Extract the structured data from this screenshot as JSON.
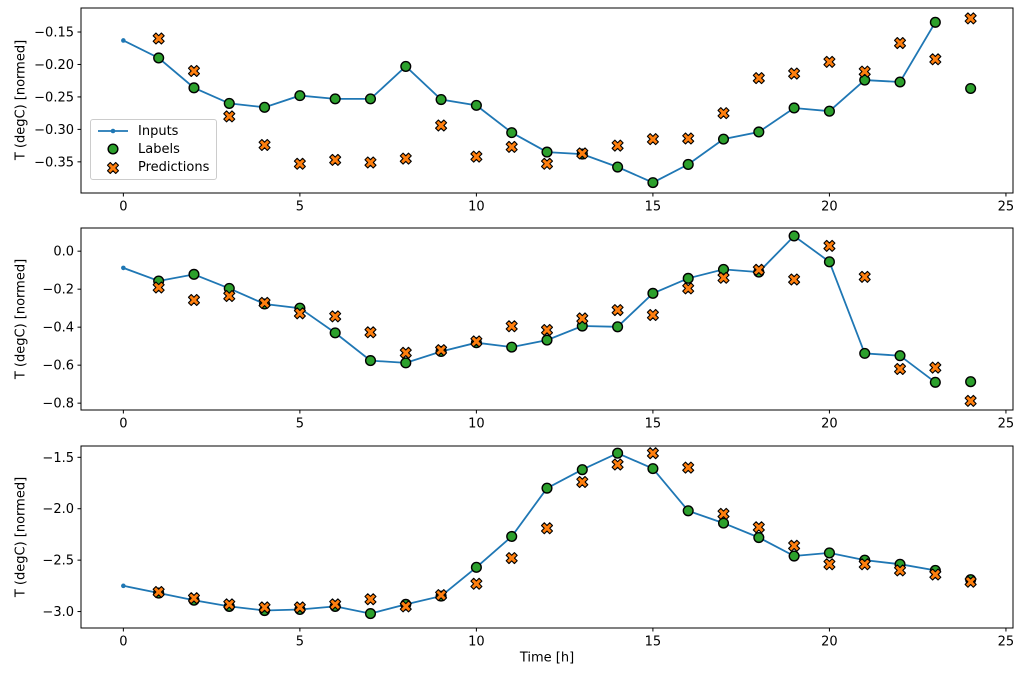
{
  "figure": {
    "background": "#ffffff",
    "n_subplots": 3,
    "shared_xlabel": "Time [h]"
  },
  "legend": {
    "visible": true,
    "position": "center-left-of-first-subplot",
    "border_color": "#cccccc"
  },
  "chart_data": [
    {
      "type": "line",
      "title": "",
      "xlabel": "",
      "ylabel": "T (degC) [normed]",
      "grid": false,
      "xlim": [
        -1.2,
        25.2
      ],
      "ylim": [
        -0.398,
        -0.113
      ],
      "xticks": {
        "values": [
          0,
          5,
          10,
          15,
          20,
          25
        ],
        "labels": [
          "0",
          "5",
          "10",
          "15",
          "20",
          "25"
        ]
      },
      "yticks": {
        "values": [
          -0.15,
          -0.2,
          -0.25,
          -0.3,
          -0.35
        ],
        "labels": [
          "−0.15",
          "−0.20",
          "−0.25",
          "−0.30",
          "−0.35"
        ]
      },
      "series": [
        {
          "name": "Inputs",
          "style": "line-dot",
          "color": "#1f77b4",
          "x": [
            0,
            1,
            2,
            3,
            4,
            5,
            6,
            7,
            8,
            9,
            10,
            11,
            12,
            13,
            14,
            15,
            16,
            17,
            18,
            19,
            20,
            21,
            22,
            23
          ],
          "y": [
            -0.163,
            -0.19,
            -0.236,
            -0.26,
            -0.266,
            -0.248,
            -0.253,
            -0.253,
            -0.203,
            -0.254,
            -0.263,
            -0.305,
            -0.335,
            -0.338,
            -0.358,
            -0.382,
            -0.354,
            -0.315,
            -0.304,
            -0.267,
            -0.272,
            -0.224,
            -0.227,
            -0.135
          ]
        },
        {
          "name": "Labels",
          "style": "scatter-circle",
          "color": "#2ca02c",
          "edge_color": "#000000",
          "x": [
            1,
            2,
            3,
            4,
            5,
            6,
            7,
            8,
            9,
            10,
            11,
            12,
            13,
            14,
            15,
            16,
            17,
            18,
            19,
            20,
            21,
            22,
            23,
            24
          ],
          "y": [
            -0.19,
            -0.236,
            -0.26,
            -0.266,
            -0.248,
            -0.253,
            -0.253,
            -0.203,
            -0.254,
            -0.263,
            -0.305,
            -0.335,
            -0.338,
            -0.358,
            -0.382,
            -0.354,
            -0.315,
            -0.304,
            -0.267,
            -0.272,
            -0.224,
            -0.227,
            -0.135,
            -0.237
          ]
        },
        {
          "name": "Predictions",
          "style": "scatter-x",
          "color": "#ff7f0e",
          "edge_color": "#000000",
          "x": [
            1,
            2,
            3,
            4,
            5,
            6,
            7,
            8,
            9,
            10,
            11,
            12,
            13,
            14,
            15,
            16,
            17,
            18,
            19,
            20,
            21,
            22,
            23,
            24
          ],
          "y": [
            -0.16,
            -0.21,
            -0.28,
            -0.324,
            -0.353,
            -0.347,
            -0.351,
            -0.345,
            -0.294,
            -0.342,
            -0.327,
            -0.353,
            -0.337,
            -0.325,
            -0.315,
            -0.314,
            -0.275,
            -0.221,
            -0.214,
            -0.196,
            -0.211,
            -0.167,
            -0.192,
            -0.129
          ]
        }
      ]
    },
    {
      "type": "line",
      "title": "",
      "xlabel": "",
      "ylabel": "T (degC) [normed]",
      "grid": false,
      "xlim": [
        -1.2,
        25.2
      ],
      "ylim": [
        -0.836,
        0.122
      ],
      "xticks": {
        "values": [
          0,
          5,
          10,
          15,
          20,
          25
        ],
        "labels": [
          "0",
          "5",
          "10",
          "15",
          "20",
          "25"
        ]
      },
      "yticks": {
        "values": [
          0.0,
          -0.2,
          -0.4,
          -0.6,
          -0.8
        ],
        "labels": [
          "0.0",
          "−0.2",
          "−0.4",
          "−0.6",
          "−0.8"
        ]
      },
      "series": [
        {
          "name": "Inputs",
          "style": "line-dot",
          "color": "#1f77b4",
          "x": [
            0,
            1,
            2,
            3,
            4,
            5,
            6,
            7,
            8,
            9,
            10,
            11,
            12,
            13,
            14,
            15,
            16,
            17,
            18,
            19,
            20,
            21,
            22,
            23
          ],
          "y": [
            -0.088,
            -0.157,
            -0.122,
            -0.196,
            -0.278,
            -0.3,
            -0.43,
            -0.576,
            -0.588,
            -0.528,
            -0.482,
            -0.505,
            -0.468,
            -0.394,
            -0.398,
            -0.222,
            -0.143,
            -0.096,
            -0.11,
            0.08,
            -0.056,
            -0.538,
            -0.55,
            -0.69
          ]
        },
        {
          "name": "Labels",
          "style": "scatter-circle",
          "color": "#2ca02c",
          "edge_color": "#000000",
          "x": [
            1,
            2,
            3,
            4,
            5,
            6,
            7,
            8,
            9,
            10,
            11,
            12,
            13,
            14,
            15,
            16,
            17,
            18,
            19,
            20,
            21,
            22,
            23,
            24
          ],
          "y": [
            -0.157,
            -0.122,
            -0.196,
            -0.278,
            -0.3,
            -0.43,
            -0.576,
            -0.588,
            -0.528,
            -0.482,
            -0.505,
            -0.468,
            -0.394,
            -0.398,
            -0.222,
            -0.143,
            -0.096,
            -0.11,
            0.08,
            -0.056,
            -0.538,
            -0.55,
            -0.69,
            -0.687
          ]
        },
        {
          "name": "Predictions",
          "style": "scatter-x",
          "color": "#ff7f0e",
          "edge_color": "#000000",
          "x": [
            1,
            2,
            3,
            4,
            5,
            6,
            7,
            8,
            9,
            10,
            11,
            12,
            13,
            14,
            15,
            16,
            17,
            18,
            19,
            20,
            21,
            22,
            23,
            24
          ],
          "y": [
            -0.191,
            -0.257,
            -0.236,
            -0.272,
            -0.327,
            -0.343,
            -0.427,
            -0.535,
            -0.521,
            -0.475,
            -0.395,
            -0.415,
            -0.354,
            -0.31,
            -0.336,
            -0.196,
            -0.14,
            -0.098,
            -0.149,
            0.028,
            -0.135,
            -0.62,
            -0.613,
            -0.788
          ]
        }
      ]
    },
    {
      "type": "line",
      "title": "",
      "xlabel": "Time [h]",
      "ylabel": "T (degC) [normed]",
      "grid": false,
      "xlim": [
        -1.2,
        25.2
      ],
      "ylim": [
        -3.16,
        -1.39
      ],
      "xticks": {
        "values": [
          0,
          5,
          10,
          15,
          20,
          25
        ],
        "labels": [
          "0",
          "5",
          "10",
          "15",
          "20",
          "25"
        ]
      },
      "yticks": {
        "values": [
          -1.5,
          -2.0,
          -2.5,
          -3.0
        ],
        "labels": [
          "−1.5",
          "−2.0",
          "−2.5",
          "−3.0"
        ]
      },
      "series": [
        {
          "name": "Inputs",
          "style": "line-dot",
          "color": "#1f77b4",
          "x": [
            0,
            1,
            2,
            3,
            4,
            5,
            6,
            7,
            8,
            9,
            10,
            11,
            12,
            13,
            14,
            15,
            16,
            17,
            18,
            19,
            20,
            21,
            22,
            23
          ],
          "y": [
            -2.75,
            -2.82,
            -2.89,
            -2.95,
            -2.99,
            -2.98,
            -2.95,
            -3.02,
            -2.93,
            -2.85,
            -2.57,
            -2.27,
            -1.8,
            -1.62,
            -1.46,
            -1.61,
            -2.02,
            -2.14,
            -2.28,
            -2.46,
            -2.43,
            -2.5,
            -2.54,
            -2.6
          ]
        },
        {
          "name": "Labels",
          "style": "scatter-circle",
          "color": "#2ca02c",
          "edge_color": "#000000",
          "x": [
            1,
            2,
            3,
            4,
            5,
            6,
            7,
            8,
            9,
            10,
            11,
            12,
            13,
            14,
            15,
            16,
            17,
            18,
            19,
            20,
            21,
            22,
            23,
            24
          ],
          "y": [
            -2.82,
            -2.89,
            -2.95,
            -2.99,
            -2.98,
            -2.95,
            -3.02,
            -2.93,
            -2.85,
            -2.57,
            -2.27,
            -1.8,
            -1.62,
            -1.46,
            -1.61,
            -2.02,
            -2.14,
            -2.28,
            -2.46,
            -2.43,
            -2.5,
            -2.54,
            -2.6,
            -2.69
          ]
        },
        {
          "name": "Predictions",
          "style": "scatter-x",
          "color": "#ff7f0e",
          "edge_color": "#000000",
          "x": [
            1,
            2,
            3,
            4,
            5,
            6,
            7,
            8,
            9,
            10,
            11,
            12,
            13,
            14,
            15,
            16,
            17,
            18,
            19,
            20,
            21,
            22,
            23,
            24
          ],
          "y": [
            -2.81,
            -2.87,
            -2.93,
            -2.96,
            -2.96,
            -2.93,
            -2.88,
            -2.95,
            -2.84,
            -2.73,
            -2.48,
            -2.19,
            -1.74,
            -1.57,
            -1.46,
            -1.6,
            -2.05,
            -2.18,
            -2.36,
            -2.54,
            -2.54,
            -2.6,
            -2.64,
            -2.71
          ]
        }
      ]
    }
  ]
}
